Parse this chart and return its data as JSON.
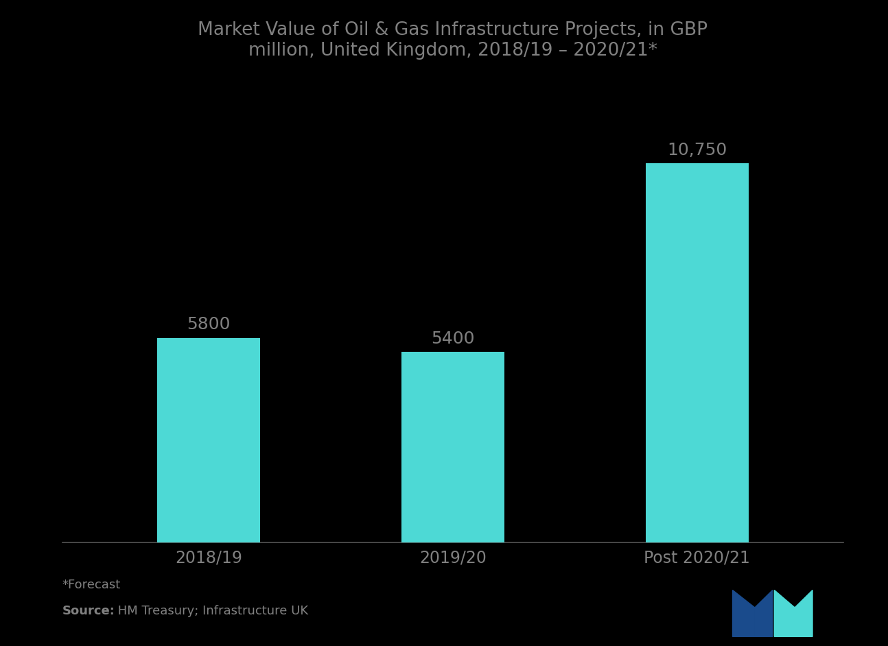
{
  "title": "Market Value of Oil & Gas Infrastructure Projects, in GBP\nmillion, United Kingdom, 2018/19 – 2020/21*",
  "categories": [
    "2018/19",
    "2019/20",
    "Post 2020/21"
  ],
  "values": [
    5800,
    5400,
    10750
  ],
  "bar_labels": [
    "5800",
    "5400",
    "10,750"
  ],
  "bar_color": "#4DD9D5",
  "background_color": "#000000",
  "text_color": "#808080",
  "title_color": "#808080",
  "bar_label_color": "#808080",
  "axis_color": "#555555",
  "footnote_line1": "*Forecast",
  "footnote_line2_bold": "Source:",
  "footnote_line2_normal": " HM Treasury; Infrastructure UK",
  "footnote_color": "#808080",
  "ylim": [
    0,
    13000
  ],
  "title_fontsize": 19,
  "tick_fontsize": 17,
  "footnote_fontsize": 13,
  "bar_label_fontsize": 18,
  "logo_dark_blue": "#1a4b8c",
  "logo_cyan": "#4DD9D5"
}
